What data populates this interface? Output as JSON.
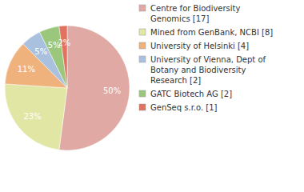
{
  "chart_data": {
    "type": "pie",
    "categories": [
      "Centre for Biodiversity\nGenomics [17]",
      "Mined from GenBank, NCBI [8]",
      "University of Helsinki [4]",
      "University of Vienna, Dept of\nBotany and Biodiversity\nResearch [2]",
      "GATC Biotech AG [2]",
      "GenSeq s.r.o. [1]"
    ],
    "values": [
      50,
      23,
      11,
      5,
      5,
      2
    ],
    "value_labels": [
      "50%",
      "23%",
      "11%",
      "5%",
      "5%",
      "2%"
    ],
    "colors": [
      "#e0a9a4",
      "#e2e6a5",
      "#efb27d",
      "#a9c1df",
      "#9bc77c",
      "#e0725f"
    ],
    "data_labels": true,
    "legend": "right"
  }
}
